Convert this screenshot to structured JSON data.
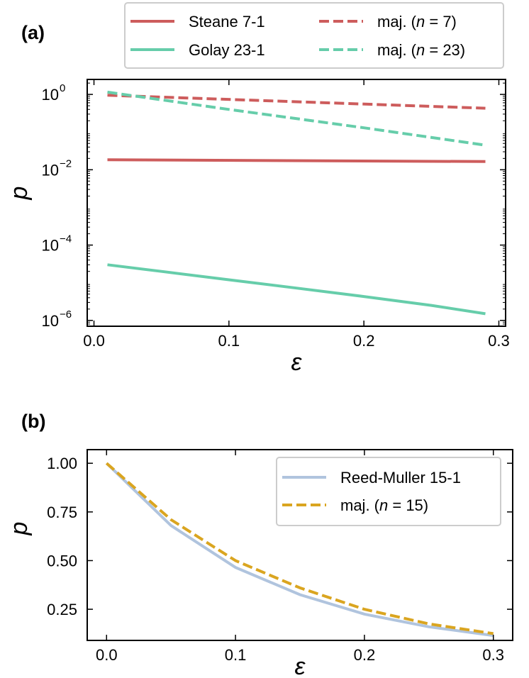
{
  "chart_data": [
    {
      "panel_label": "(a)",
      "type": "line",
      "xlabel": "ε",
      "ylabel": "p",
      "yscale": "log",
      "xlim": [
        -0.005,
        0.305
      ],
      "ylim": [
        7e-07,
        2.5
      ],
      "xticks": [
        0.0,
        0.1,
        0.2,
        0.3
      ],
      "xtick_labels": [
        "0.0",
        "0.1",
        "0.2",
        "0.3"
      ],
      "yticks": [
        1e-06,
        0.0001,
        0.01,
        1
      ],
      "ytick_labels": [
        {
          "base": "10",
          "exp": "−6"
        },
        {
          "base": "10",
          "exp": "−4"
        },
        {
          "base": "10",
          "exp": "−2"
        },
        {
          "base": "10",
          "exp": "0"
        }
      ],
      "legend_position": "top, above plot (2 columns)",
      "grid": false,
      "series": [
        {
          "name": "Steane 7-1",
          "color": "#cd5c5c",
          "dash": "solid",
          "x": [
            0.01,
            0.29
          ],
          "y": [
            0.0185,
            0.0165
          ]
        },
        {
          "name": "Golay 23-1",
          "color": "#66cdaa",
          "dash": "solid",
          "x": [
            0.01,
            0.05,
            0.1,
            0.15,
            0.2,
            0.25,
            0.29
          ],
          "y": [
            3e-05,
            2e-05,
            1.2e-05,
            7.2e-06,
            4.3e-06,
            2.5e-06,
            1.5e-06
          ]
        },
        {
          "name": "maj. (n = 7)",
          "name_parts": {
            "pre": "maj. (",
            "var": "n",
            "post": " = 7)"
          },
          "color": "#cd5c5c",
          "dash": "dashed",
          "x": [
            0.01,
            0.29
          ],
          "y": [
            0.95,
            0.43
          ]
        },
        {
          "name": "maj. (n = 23)",
          "name_parts": {
            "pre": "maj. (",
            "var": "n",
            "post": " = 23)"
          },
          "color": "#66cdaa",
          "dash": "dashed",
          "x": [
            0.01,
            0.1,
            0.2,
            0.29
          ],
          "y": [
            1.15,
            0.4,
            0.13,
            0.045
          ]
        }
      ]
    },
    {
      "panel_label": "(b)",
      "type": "line",
      "xlabel": "ε",
      "ylabel": "p",
      "yscale": "linear",
      "xlim": [
        -0.015,
        0.315
      ],
      "ylim": [
        0.09,
        1.07
      ],
      "xticks": [
        0.0,
        0.1,
        0.2,
        0.3
      ],
      "xtick_labels": [
        "0.0",
        "0.1",
        "0.2",
        "0.3"
      ],
      "yticks": [
        0.25,
        0.5,
        0.75,
        1.0
      ],
      "ytick_labels": [
        "0.25",
        "0.50",
        "0.75",
        "1.00"
      ],
      "legend_position": "upper right",
      "grid": false,
      "series": [
        {
          "name": "Reed-Muller 15-1",
          "color": "#b0c4de",
          "dash": "solid",
          "x": [
            0.0,
            0.05,
            0.1,
            0.15,
            0.2,
            0.25,
            0.3
          ],
          "y": [
            1.0,
            0.68,
            0.465,
            0.325,
            0.225,
            0.16,
            0.115
          ]
        },
        {
          "name": "maj. (n = 15)",
          "name_parts": {
            "pre": "maj. (",
            "var": "n",
            "post": " = 15)"
          },
          "color": "#daa520",
          "dash": "dashed",
          "x": [
            0.0,
            0.05,
            0.1,
            0.15,
            0.2,
            0.25,
            0.3
          ],
          "y": [
            1.0,
            0.71,
            0.5,
            0.36,
            0.25,
            0.175,
            0.125
          ]
        }
      ]
    }
  ]
}
